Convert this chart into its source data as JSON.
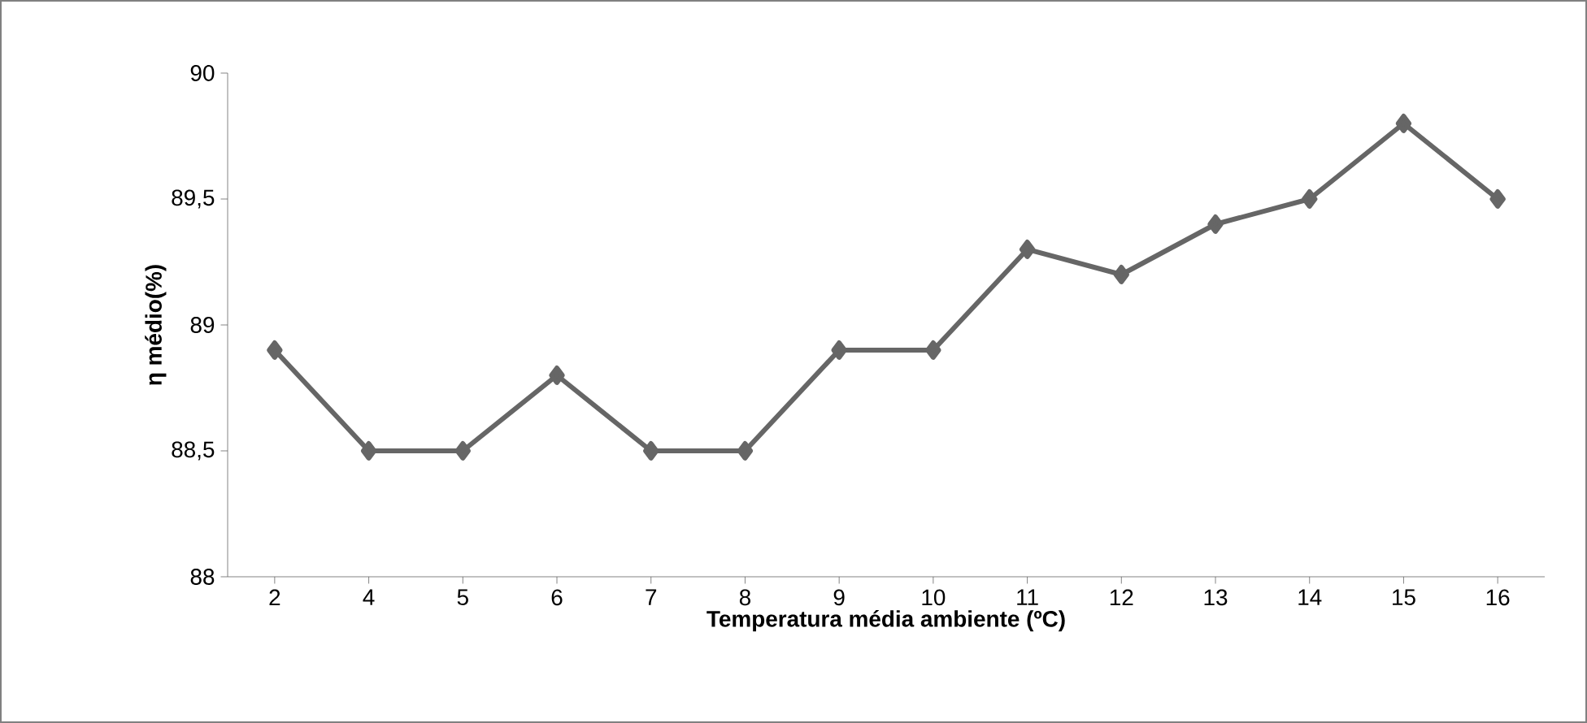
{
  "chart_data": {
    "type": "line",
    "xlabel": "Temperatura média ambiente (ºC)",
    "ylabel": "η médio(%)",
    "categories": [
      "2",
      "4",
      "5",
      "6",
      "7",
      "8",
      "9",
      "10",
      "11",
      "12",
      "13",
      "14",
      "15",
      "16"
    ],
    "series": [
      {
        "color": "#666666",
        "values": [
          88.9,
          88.5,
          88.5,
          88.8,
          88.5,
          88.5,
          88.9,
          88.9,
          89.3,
          89.2,
          89.4,
          89.5,
          89.8,
          89.5
        ]
      }
    ],
    "ylim": [
      88,
      90
    ],
    "yticks": [
      88,
      {
        "value": 88.5,
        "label": "88,5"
      },
      89,
      {
        "value": 89.5,
        "label": "89,5"
      },
      90
    ],
    "marker": "diamond",
    "line_style": "solid",
    "grid": false,
    "legend": false
  }
}
